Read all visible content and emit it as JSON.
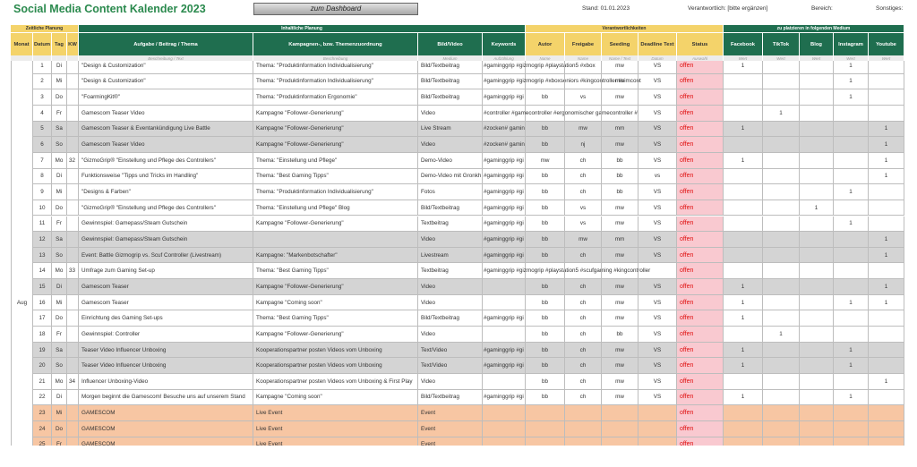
{
  "header": {
    "title": "Social Media Content Kalender 2023",
    "button": "zum Dashboard",
    "stand": "Stand:  01.01.2023",
    "verantwortlich": "Verantwortlich: [bitte ergänzen]",
    "bereich": "Bereich:",
    "sonstiges": "Sonstiges:"
  },
  "groups": [
    "Zeitliche Planung",
    "Inhaltliche Planung",
    "Verantwortlichkeiten",
    "zu platzieren in folgenden Medium"
  ],
  "columns": [
    "Monat",
    "Datum",
    "Tag",
    "KW",
    "Aufgabe / Beitrag / Thema",
    "Kampagnen-, bzw. Themenzuordnung",
    "Bild/Video",
    "Keywords",
    "Autor",
    "Freigabe",
    "Seeding",
    "Deadline Text",
    "Status",
    "Facebook",
    "TikTok",
    "Blog",
    "Instagram",
    "Youtube"
  ],
  "subcolumns": [
    null,
    null,
    null,
    null,
    "Beschreibung / Text",
    "Beschreibung",
    "Medium",
    "Aufzählung",
    "Name",
    "Name",
    "Name / Text",
    "Datum",
    "Auswahl",
    "Wert",
    "Wert",
    "Wert",
    "Wert",
    "Wert"
  ],
  "month": "Aug",
  "rows": [
    [
      "1",
      "Di",
      null,
      "\"Design & Customization\"",
      "Thema: \"Produktinformation Individualisierung\"",
      "Bild/Textbeitrag",
      "#gaminggrip #gizmogrip #playstation5 #xbox",
      null,
      null,
      "mw",
      "VS",
      "offen",
      "1",
      null,
      null,
      "1",
      null
    ],
    [
      "2",
      "Mi",
      null,
      "\"Design & Customization\"",
      "Thema: \"Produktinformation Individualisierung\"",
      "Bild/Textbeitrag",
      "#gaminggrip #gizmogrip #xboxseniors #kingcontroller #simcont",
      null,
      null,
      "mw",
      "VS",
      "offen",
      null,
      null,
      null,
      "1",
      null
    ],
    [
      "3",
      "Do",
      null,
      "\"FoarmingKit®\"",
      "Thema: \"Produktinformation Ergonomie\"",
      "Bild/Textbeitrag",
      "#gaminggrip #gi",
      "bb",
      "vs",
      "mw",
      "VS",
      "offen",
      null,
      null,
      null,
      "1",
      null
    ],
    [
      "4",
      "Fr",
      null,
      "Gamescom Teaser Video",
      "Kampagne \"Follower-Generierung\"",
      "Video",
      "#controller #gamecontroller #ergonomischer gamecontroller #",
      null,
      null,
      null,
      "VS",
      "offen",
      null,
      "1",
      null,
      null,
      null
    ],
    [
      "5",
      "Sa",
      null,
      "Gamescom Teaser & Eventankündigung Live Battle",
      "Kampagne \"Follower-Generierung\"",
      "Live Stream",
      "#zocken# gamin",
      "bb",
      "mw",
      "mm",
      "VS",
      "offen",
      "1",
      null,
      null,
      null,
      "1"
    ],
    [
      "6",
      "So",
      null,
      "Gamescom Teaser Video",
      "Kampagne \"Follower-Generierung\"",
      "Video",
      "#zocken# gamin",
      "bb",
      "nj",
      "mw",
      "VS",
      "offen",
      null,
      null,
      null,
      null,
      "1"
    ],
    [
      "7",
      "Mo",
      "32",
      "\"GizmoGrip® \"Einstellung und Pflege des Controllers\"",
      "Thema: \"Einstellung und Pflege\"",
      "Demo-Video",
      "#gaminggrip #gi",
      "mw",
      "ch",
      "bb",
      "VS",
      "offen",
      "1",
      null,
      null,
      null,
      "1"
    ],
    [
      "8",
      "Di",
      null,
      "Funktionsweise \"Tipps und Tricks im Handling\"",
      "Thema: \"Best Gaming Tipps\"",
      "Demo-Video mit Gronkh",
      "#gaminggrip #gi",
      "bb",
      "ch",
      "bb",
      "vs",
      "offen",
      null,
      null,
      null,
      null,
      "1"
    ],
    [
      "9",
      "Mi",
      null,
      "\"Designs & Farben\"",
      "Thema: \"Produktinformation Individualisierung\"",
      "Fotos",
      "#gaminggrip #gi",
      "bb",
      "ch",
      "bb",
      "VS",
      "offen",
      null,
      null,
      null,
      "1",
      null
    ],
    [
      "10",
      "Do",
      null,
      "\"GizmoGrip® \"Einstellung und Pflege des Controllers\"",
      "Thema: \"Einstellung und Pflege\" Blog",
      "Bild/Textbeitrag",
      "#gaminggrip #gi",
      "bb",
      "vs",
      "mw",
      "VS",
      "offen",
      null,
      null,
      "1",
      null,
      null
    ],
    [
      "11",
      "Fr",
      null,
      "Gewinnspiel: Gamepass/Steam Gutschein",
      "Kampagne \"Follower-Generierung\"",
      "Textbeitrag",
      "#gaminggrip #gi",
      "bb",
      "vs",
      "mw",
      "VS",
      "offen",
      null,
      null,
      null,
      "1",
      null
    ],
    [
      "12",
      "Sa",
      null,
      "Gewinnspiel: Gamepass/Steam Gutschein",
      null,
      "Video",
      "#gaminggrip #gi",
      "bb",
      "mw",
      "mm",
      "VS",
      "offen",
      null,
      null,
      null,
      null,
      "1"
    ],
    [
      "13",
      "So",
      null,
      "Event: Battle Gizmogrip vs. Scuf Controller (Livestream)",
      "Kampagne: \"Markenbotschafter\"",
      "Livestream",
      "#gaminggrip #gi",
      "bb",
      "ch",
      "mw",
      "VS",
      "offen",
      null,
      null,
      null,
      null,
      "1"
    ],
    [
      "14",
      "Mo",
      "33",
      "Umfrage zum Gaming Set-up",
      "Thema: \"Best Gaming Tipps\"",
      "Textbeitrag",
      "#gaminggrip #gizmogrip #playstation5 #scufgaming #kingcontroller",
      null,
      null,
      null,
      null,
      "offen",
      null,
      null,
      null,
      null,
      null
    ],
    [
      "15",
      "Di",
      null,
      "Gamescom Teaser",
      "Kampagne \"Follower-Generierung\"",
      "Video",
      null,
      "bb",
      "ch",
      "mw",
      "VS",
      "offen",
      "1",
      null,
      null,
      null,
      "1"
    ],
    [
      "16",
      "Mi",
      null,
      "Gamescom Teaser",
      "Kampagne \"Coming soon\"",
      "Video",
      null,
      "bb",
      "ch",
      "mw",
      "VS",
      "offen",
      "1",
      null,
      null,
      "1",
      "1"
    ],
    [
      "17",
      "Do",
      null,
      "Einrichtung des Gaming Set-ups",
      "Thema: \"Best Gaming Tipps\"",
      "Bild/Textbeitrag",
      "#gaminggrip #gi",
      "bb",
      "ch",
      "mw",
      "VS",
      "offen",
      "1",
      null,
      null,
      null,
      null
    ],
    [
      "18",
      "Fr",
      null,
      "Gewinnspiel: Controller",
      "Kampagne \"Follower-Generierung\"",
      "Video",
      null,
      "bb",
      "ch",
      "bb",
      "VS",
      "offen",
      null,
      "1",
      null,
      null,
      null
    ],
    [
      "19",
      "Sa",
      null,
      "Teaser Video Influencer Unboxing",
      "Kooperationspartner posten Videos vom Unboxing",
      "Text/Video",
      "#gaminggrip #gi",
      "bb",
      "ch",
      "mw",
      "VS",
      "offen",
      "1",
      null,
      null,
      "1",
      null
    ],
    [
      "20",
      "So",
      null,
      "Teaser Video Influencer Unboxing",
      "Kooperationspartner posten Videos vom Unboxing",
      "Text/Video",
      "#gaminggrip #gi",
      "bb",
      "ch",
      "mw",
      "VS",
      "offen",
      "1",
      null,
      null,
      "1",
      null
    ],
    [
      "21",
      "Mo",
      "34",
      "Influencer Unboxing-Video",
      "Kooperationspartner posten Videos vom Unboxing & First Play",
      "Video",
      null,
      "bb",
      "ch",
      "mw",
      "VS",
      "offen",
      null,
      null,
      null,
      null,
      "1"
    ],
    [
      "22",
      "Di",
      null,
      "Morgen beginnt die Gamescom! Besuche uns auf unserem Stand",
      "Kampagne \"Coming soon\"",
      "Bild/Textbeitrag",
      "#gaminggrip #gi",
      "bb",
      "ch",
      "mw",
      "VS",
      "offen",
      "1",
      null,
      null,
      "1",
      null
    ],
    [
      "23",
      "Mi",
      null,
      "GAMESCOM",
      "Live Event",
      "Event",
      null,
      null,
      null,
      null,
      null,
      "offen",
      null,
      null,
      null,
      null,
      null
    ],
    [
      "24",
      "Do",
      null,
      "GAMESCOM",
      "Live Event",
      "Event",
      null,
      null,
      null,
      null,
      null,
      "offen",
      null,
      null,
      null,
      null,
      null
    ],
    [
      "25",
      "Fr",
      null,
      "GAMESCOM",
      "Live Event",
      "Event",
      null,
      null,
      null,
      null,
      null,
      "offen",
      null,
      null,
      null,
      null,
      null
    ]
  ],
  "row_fill": [
    "#ffffff",
    "#ffffff",
    "#ffffff",
    "#ffffff",
    "#d4d4d4",
    "#d4d4d4",
    "#ffffff",
    "#ffffff",
    "#ffffff",
    "#ffffff",
    "#ffffff",
    "#d4d4d4",
    "#d4d4d4",
    "#ffffff",
    "#d4d4d4",
    "#ffffff",
    "#ffffff",
    "#ffffff",
    "#d4d4d4",
    "#d4d4d4",
    "#ffffff",
    "#ffffff",
    "#f7c6a3",
    "#f7c6a3",
    "#f7c6a3"
  ]
}
